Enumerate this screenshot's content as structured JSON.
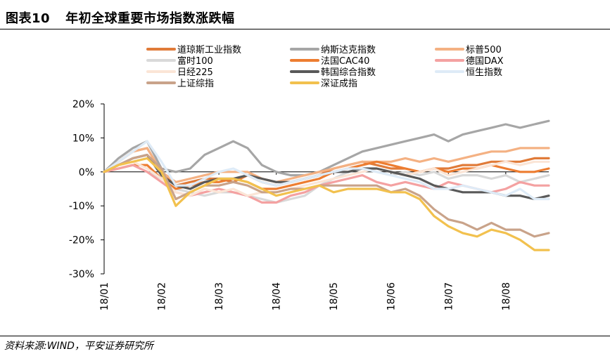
{
  "figure": {
    "number": "图表10",
    "title": "年初全球重要市场指数涨跌幅",
    "source": "资料来源:WIND，平安证券研究所"
  },
  "chart_data": {
    "type": "line",
    "title": "年初全球重要市场指数涨跌幅",
    "xlabel": "",
    "ylabel": "",
    "ylim": [
      -30,
      20
    ],
    "y_ticks": [
      20,
      10,
      0,
      -10,
      -20,
      -30
    ],
    "y_tick_labels": [
      "20%",
      "10%",
      "0%",
      "-10%",
      "-20%",
      "-30%"
    ],
    "x_tick_labels": [
      "18/01",
      "18/02",
      "18/03",
      "18/04",
      "18/05",
      "18/06",
      "18/07",
      "18/08"
    ],
    "x_ticks": [
      0,
      1,
      2,
      3,
      4,
      5,
      6,
      7
    ],
    "x_range": [
      0,
      7.75
    ],
    "x": [
      0,
      0.25,
      0.5,
      0.75,
      1.0,
      1.25,
      1.5,
      1.75,
      2.0,
      2.25,
      2.5,
      2.75,
      3.0,
      3.25,
      3.5,
      3.75,
      4.0,
      4.25,
      4.5,
      4.75,
      5.0,
      5.25,
      5.5,
      5.75,
      6.0,
      6.25,
      6.5,
      6.75,
      7.0,
      7.25,
      7.5,
      7.75
    ],
    "legend_position": "top",
    "series": [
      {
        "name": "道琼斯工业指数",
        "color": "#e07b39",
        "values": [
          0,
          3,
          6,
          7,
          0,
          -4,
          -3,
          -2,
          -2,
          -3,
          -1,
          -3,
          -4,
          -3,
          -2,
          -1,
          1,
          2,
          3,
          2,
          1,
          1,
          0,
          1,
          1,
          2,
          2,
          3,
          3,
          3,
          4,
          4
        ]
      },
      {
        "name": "纳斯达克指数",
        "color": "#a6a6a6",
        "values": [
          0,
          4,
          7,
          9,
          1,
          0,
          1,
          5,
          7,
          9,
          7,
          2,
          0,
          -1,
          -1,
          0,
          2,
          4,
          6,
          7,
          8,
          9,
          10,
          11,
          9,
          11,
          12,
          13,
          14,
          13,
          14,
          15
        ]
      },
      {
        "name": "标普500",
        "color": "#f4b183",
        "values": [
          0,
          3,
          6,
          7,
          0,
          -3,
          -2,
          -1,
          0,
          0,
          0,
          -2,
          -3,
          -2,
          -1,
          0,
          1,
          2,
          3,
          3,
          3,
          4,
          3,
          4,
          3,
          4,
          5,
          6,
          6,
          7,
          7,
          7
        ]
      },
      {
        "name": "富时100",
        "color": "#d9d9d9",
        "values": [
          0,
          1,
          2,
          0,
          -2,
          -5,
          -6,
          -7,
          -6,
          -6,
          -7,
          -8,
          -9,
          -8,
          -7,
          -4,
          -2,
          0,
          1,
          0,
          -1,
          0,
          -1,
          0,
          -2,
          -1,
          -1,
          -2,
          -1,
          -3,
          -2,
          -1
        ]
      },
      {
        "name": "法国CAC40",
        "color": "#ed7d31",
        "values": [
          0,
          1,
          2,
          2,
          -2,
          -5,
          -4,
          -3,
          -3,
          -2,
          -3,
          -5,
          -5,
          -4,
          -3,
          -2,
          0,
          1,
          2,
          3,
          2,
          1,
          0,
          1,
          0,
          1,
          1,
          2,
          1,
          0,
          0,
          1
        ]
      },
      {
        "name": "德国DAX",
        "color": "#f4a1a1",
        "values": [
          0,
          1,
          2,
          0,
          -3,
          -6,
          -7,
          -6,
          -5,
          -6,
          -7,
          -9,
          -9,
          -7,
          -6,
          -4,
          -3,
          -2,
          -1,
          -3,
          -4,
          -3,
          -4,
          -5,
          -3,
          -4,
          -5,
          -6,
          -5,
          -3,
          -4,
          -4
        ]
      },
      {
        "name": "日经225",
        "color": "#fbe5d6",
        "values": [
          0,
          2,
          3,
          1,
          -2,
          -6,
          -7,
          -5,
          -6,
          -5,
          -7,
          -6,
          -6,
          -5,
          -4,
          -3,
          -2,
          -1,
          0,
          1,
          0,
          -1,
          0,
          1,
          -1,
          0,
          1,
          2,
          3,
          2,
          3,
          3
        ]
      },
      {
        "name": "韩国综合指数",
        "color": "#595959",
        "values": [
          0,
          2,
          4,
          5,
          -1,
          -4,
          -5,
          -3,
          -2,
          -2,
          -1,
          -2,
          -3,
          -3,
          -2,
          -1,
          0,
          0,
          1,
          1,
          0,
          -1,
          -2,
          -4,
          -5,
          -6,
          -6,
          -6,
          -7,
          -7,
          -8,
          -7
        ]
      },
      {
        "name": "恒生指数",
        "color": "#deebf7",
        "values": [
          0,
          3,
          6,
          9,
          3,
          -4,
          -4,
          -2,
          0,
          1,
          -1,
          -3,
          -4,
          -3,
          -2,
          -1,
          0,
          1,
          1,
          0,
          -1,
          -2,
          -3,
          -5,
          -5,
          -4,
          -5,
          -6,
          -7,
          -5,
          -8,
          -8
        ]
      },
      {
        "name": "上证综指",
        "color": "#c9a38a",
        "values": [
          0,
          2,
          4,
          5,
          1,
          -8,
          -6,
          -4,
          -4,
          -3,
          -4,
          -6,
          -6,
          -5,
          -5,
          -4,
          -4,
          -4,
          -4,
          -4,
          -6,
          -5,
          -7,
          -11,
          -14,
          -15,
          -17,
          -15,
          -17,
          -17,
          -19,
          -18
        ]
      },
      {
        "name": "深证成指",
        "color": "#f2c14e",
        "values": [
          0,
          2,
          3,
          4,
          0,
          -10,
          -6,
          -4,
          -2,
          -2,
          -3,
          -5,
          -7,
          -6,
          -5,
          -4,
          -6,
          -5,
          -5,
          -5,
          -6,
          -6,
          -8,
          -13,
          -16,
          -18,
          -19,
          -17,
          -18,
          -20,
          -23,
          -23
        ]
      }
    ]
  }
}
